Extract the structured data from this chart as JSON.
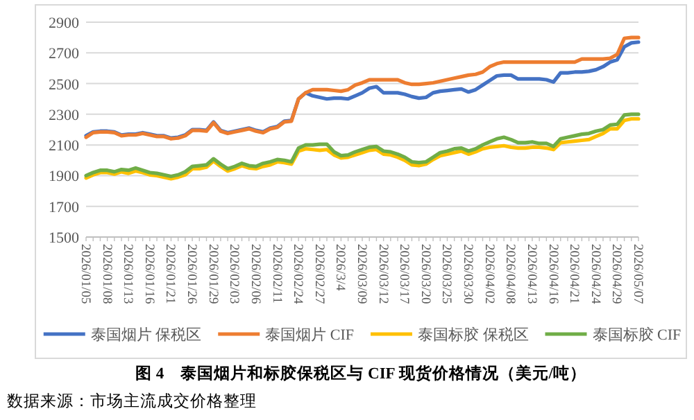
{
  "chart_data": {
    "type": "line",
    "title": "图 4　泰国烟片和标胶保税区与 CIF 现货价格情况（美元/吨）",
    "annotations": [
      "数据来源：市场主流成交价格整理"
    ],
    "categories": [
      "2026/01/05",
      null,
      null,
      "2026/01/08",
      null,
      null,
      "2026/01/13",
      null,
      null,
      "2026/01/16",
      null,
      null,
      "2026/01/21",
      null,
      null,
      "2026/01/26",
      null,
      null,
      "2026/01/29",
      null,
      null,
      "2026/02/03",
      null,
      null,
      "2026/02/06",
      null,
      null,
      "2026/02/11",
      null,
      null,
      "2026/02/24",
      null,
      null,
      "2026/02/27",
      null,
      null,
      "2026/3/4",
      null,
      null,
      "2026/03/09",
      null,
      null,
      "2026/03/12",
      null,
      null,
      "2026/03/17",
      null,
      null,
      "2026/03/20",
      null,
      null,
      "2026/03/25",
      null,
      null,
      "2026/03/30",
      null,
      null,
      "2026/04/02",
      null,
      null,
      "2026/04/08",
      null,
      null,
      "2026/04/13",
      null,
      null,
      "2026/04/16",
      null,
      null,
      "2026/04/21",
      null,
      null,
      "2026/04/24",
      null,
      null,
      "2026/04/29",
      null,
      null,
      "2026/05/07"
    ],
    "series": [
      {
        "name": "泰国烟片 保税区",
        "color": "#4472c4",
        "values": [
          2160,
          2185,
          2190,
          2190,
          2185,
          2165,
          2170,
          2170,
          2180,
          2170,
          2160,
          2160,
          2145,
          2150,
          2165,
          2200,
          2200,
          2195,
          2250,
          2195,
          2180,
          2190,
          2200,
          2210,
          2195,
          2185,
          2210,
          2220,
          2255,
          2260,
          2400,
          2440,
          2420,
          2410,
          2400,
          2405,
          2405,
          2400,
          2420,
          2440,
          2470,
          2480,
          2440,
          2440,
          2440,
          2430,
          2415,
          2405,
          2410,
          2440,
          2450,
          2455,
          2460,
          2465,
          2445,
          2460,
          2490,
          2520,
          2550,
          2555,
          2555,
          2530,
          2530,
          2530,
          2530,
          2525,
          2510,
          2570,
          2570,
          2575,
          2575,
          2580,
          2590,
          2610,
          2640,
          2655,
          2740,
          2765,
          2770
        ]
      },
      {
        "name": "泰国烟片 CIF",
        "color": "#ed7d31",
        "values": [
          2150,
          2180,
          2185,
          2185,
          2180,
          2160,
          2165,
          2165,
          2175,
          2165,
          2155,
          2155,
          2140,
          2145,
          2160,
          2195,
          2195,
          2190,
          2245,
          2190,
          2175,
          2185,
          2195,
          2205,
          2190,
          2180,
          2205,
          2215,
          2250,
          2255,
          2400,
          2440,
          2460,
          2460,
          2460,
          2455,
          2450,
          2460,
          2490,
          2505,
          2525,
          2525,
          2525,
          2525,
          2525,
          2505,
          2495,
          2495,
          2500,
          2505,
          2515,
          2525,
          2535,
          2545,
          2555,
          2560,
          2575,
          2610,
          2630,
          2640,
          2640,
          2640,
          2640,
          2640,
          2640,
          2640,
          2640,
          2640,
          2640,
          2640,
          2660,
          2660,
          2660,
          2660,
          2665,
          2690,
          2795,
          2800,
          2800
        ]
      },
      {
        "name": "泰国标胶 保税区",
        "color": "#ffc000",
        "values": [
          1885,
          1905,
          1920,
          1920,
          1910,
          1925,
          1915,
          1930,
          1920,
          1905,
          1900,
          1890,
          1880,
          1890,
          1905,
          1945,
          1945,
          1955,
          1995,
          1960,
          1930,
          1945,
          1965,
          1950,
          1945,
          1960,
          1970,
          1990,
          1985,
          1975,
          2060,
          2075,
          2070,
          2065,
          2070,
          2035,
          2015,
          2020,
          2035,
          2050,
          2065,
          2070,
          2040,
          2035,
          2020,
          2000,
          1970,
          1965,
          1975,
          2005,
          2030,
          2040,
          2050,
          2060,
          2040,
          2055,
          2075,
          2085,
          2090,
          2095,
          2085,
          2080,
          2080,
          2085,
          2085,
          2080,
          2070,
          2115,
          2120,
          2125,
          2130,
          2135,
          2155,
          2175,
          2205,
          2205,
          2260,
          2270,
          2270
        ]
      },
      {
        "name": "泰国标胶 CIF",
        "color": "#70ad47",
        "values": [
          1900,
          1920,
          1935,
          1935,
          1925,
          1940,
          1935,
          1950,
          1935,
          1920,
          1915,
          1905,
          1895,
          1905,
          1925,
          1960,
          1965,
          1970,
          2010,
          1975,
          1945,
          1960,
          1980,
          1965,
          1960,
          1980,
          1990,
          2005,
          2000,
          1990,
          2080,
          2100,
          2100,
          2105,
          2105,
          2055,
          2030,
          2035,
          2055,
          2070,
          2085,
          2090,
          2060,
          2055,
          2040,
          2020,
          1990,
          1985,
          1990,
          2020,
          2050,
          2060,
          2075,
          2080,
          2060,
          2075,
          2100,
          2120,
          2140,
          2150,
          2135,
          2115,
          2115,
          2120,
          2110,
          2110,
          2090,
          2140,
          2150,
          2160,
          2170,
          2175,
          2190,
          2200,
          2230,
          2235,
          2295,
          2300,
          2300
        ]
      }
    ],
    "ylim": [
      1500,
      2900
    ],
    "yticks": [
      1500,
      1700,
      1900,
      2100,
      2300,
      2500,
      2700,
      2900
    ],
    "grid": "y",
    "legend": "bottom",
    "marker": "none",
    "line_style": "solid"
  }
}
